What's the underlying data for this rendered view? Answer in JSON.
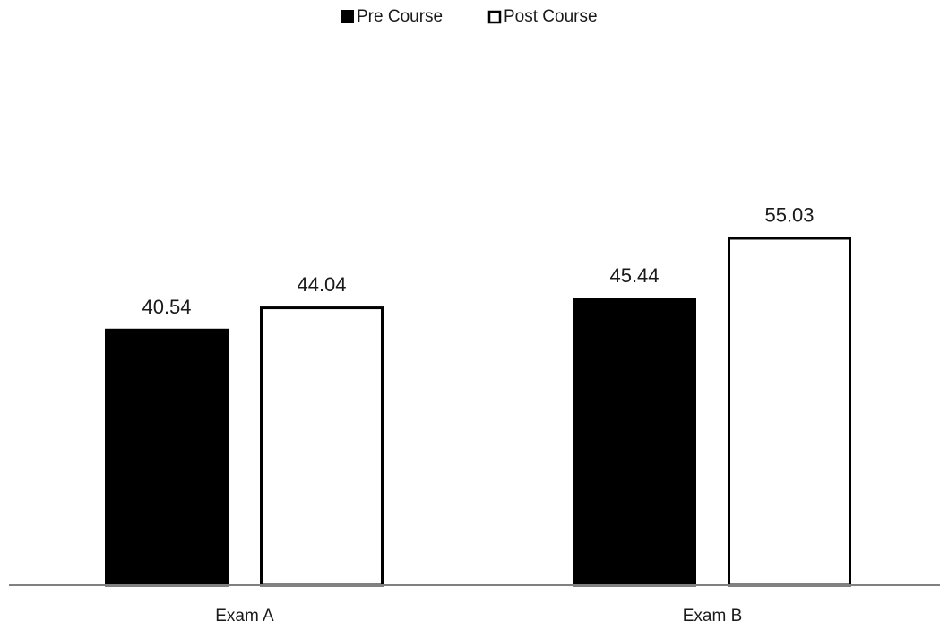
{
  "chart_data": {
    "type": "bar",
    "categories": [
      "Exam A",
      "Exam B"
    ],
    "series": [
      {
        "name": "Pre Course",
        "values": [
          40.54,
          45.44
        ],
        "fill": "#000000",
        "stroke": "#000000"
      },
      {
        "name": "Post Course",
        "values": [
          44.04,
          55.03
        ],
        "fill": "#ffffff",
        "stroke": "#000000"
      }
    ],
    "data_labels": [
      [
        "40.54",
        "45.44"
      ],
      [
        "44.04",
        "55.03"
      ]
    ],
    "ylim": [
      0,
      60
    ],
    "grid": false,
    "legend_position": "top-center",
    "axis_color": "#808080"
  }
}
